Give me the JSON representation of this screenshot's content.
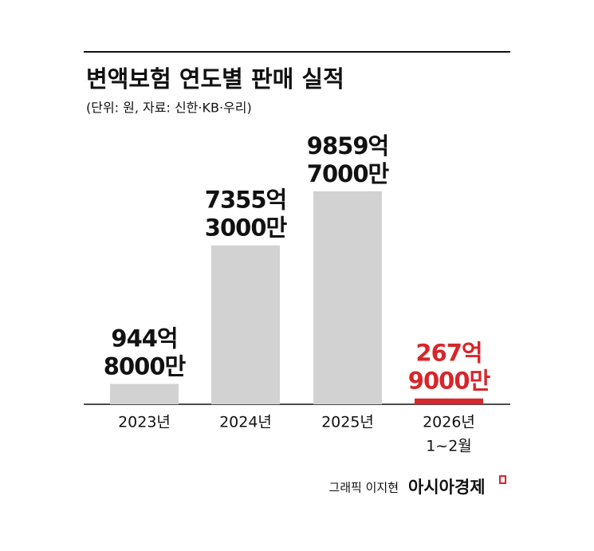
{
  "chart_data": {
    "type": "bar",
    "title": "변액보험 연도별 판매 실적",
    "subtitle": "(단위: 원, 자료: 신한·KB·우리)",
    "categories": [
      [
        "2023년"
      ],
      [
        "2024년"
      ],
      [
        "2025년"
      ],
      [
        "2026년",
        "1~2월"
      ]
    ],
    "values": [
      94480000000,
      735530000000,
      985970000000,
      26790000000
    ],
    "value_labels": [
      [
        "944억",
        "8000만"
      ],
      [
        "7355억",
        "3000만"
      ],
      [
        "9859억",
        "7000만"
      ],
      [
        "267억",
        "9000만"
      ]
    ],
    "colors": [
      "#d2d2d2",
      "#d2d2d2",
      "#d2d2d2",
      "#d7262b"
    ],
    "label_colors": [
      "#111111",
      "#111111",
      "#111111",
      "#d7262b"
    ],
    "ylim": [
      0,
      1100000000000
    ],
    "credit": "그래픽 이지현",
    "brand": "아시아경제"
  }
}
